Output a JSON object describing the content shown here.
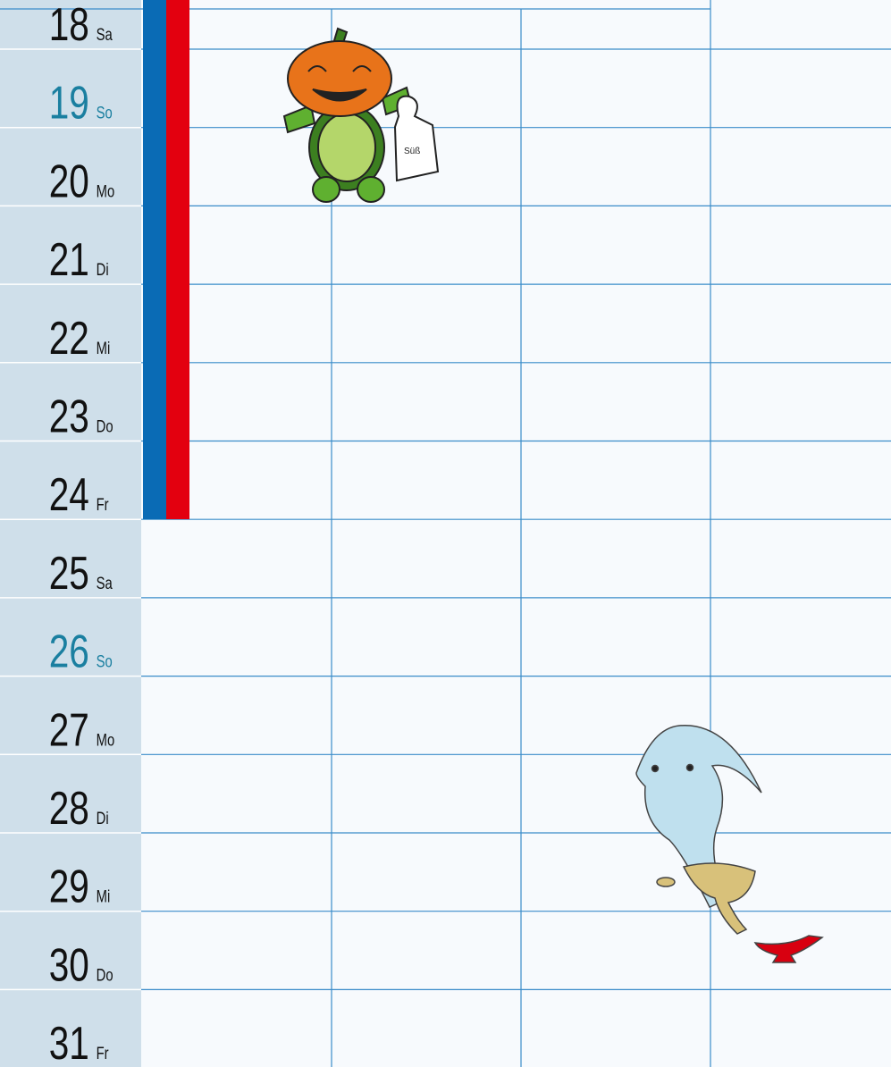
{
  "calendar": {
    "rows": [
      {
        "day": "18",
        "weekday": "Sa",
        "color": "#111111"
      },
      {
        "day": "19",
        "weekday": "So",
        "color": "#1a7fa0"
      },
      {
        "day": "20",
        "weekday": "Mo",
        "color": "#111111"
      },
      {
        "day": "21",
        "weekday": "Di",
        "color": "#111111"
      },
      {
        "day": "22",
        "weekday": "Mi",
        "color": "#111111"
      },
      {
        "day": "23",
        "weekday": "Do",
        "color": "#111111"
      },
      {
        "day": "24",
        "weekday": "Fr",
        "color": "#111111"
      },
      {
        "day": "25",
        "weekday": "Sa",
        "color": "#111111"
      },
      {
        "day": "26",
        "weekday": "So",
        "color": "#1a7fa0"
      },
      {
        "day": "27",
        "weekday": "Mo",
        "color": "#111111"
      },
      {
        "day": "28",
        "weekday": "Di",
        "color": "#111111"
      },
      {
        "day": "29",
        "weekday": "Mi",
        "color": "#111111"
      },
      {
        "day": "30",
        "weekday": "Do",
        "color": "#111111"
      },
      {
        "day": "31",
        "weekday": "Fr",
        "color": "#111111"
      }
    ]
  }
}
